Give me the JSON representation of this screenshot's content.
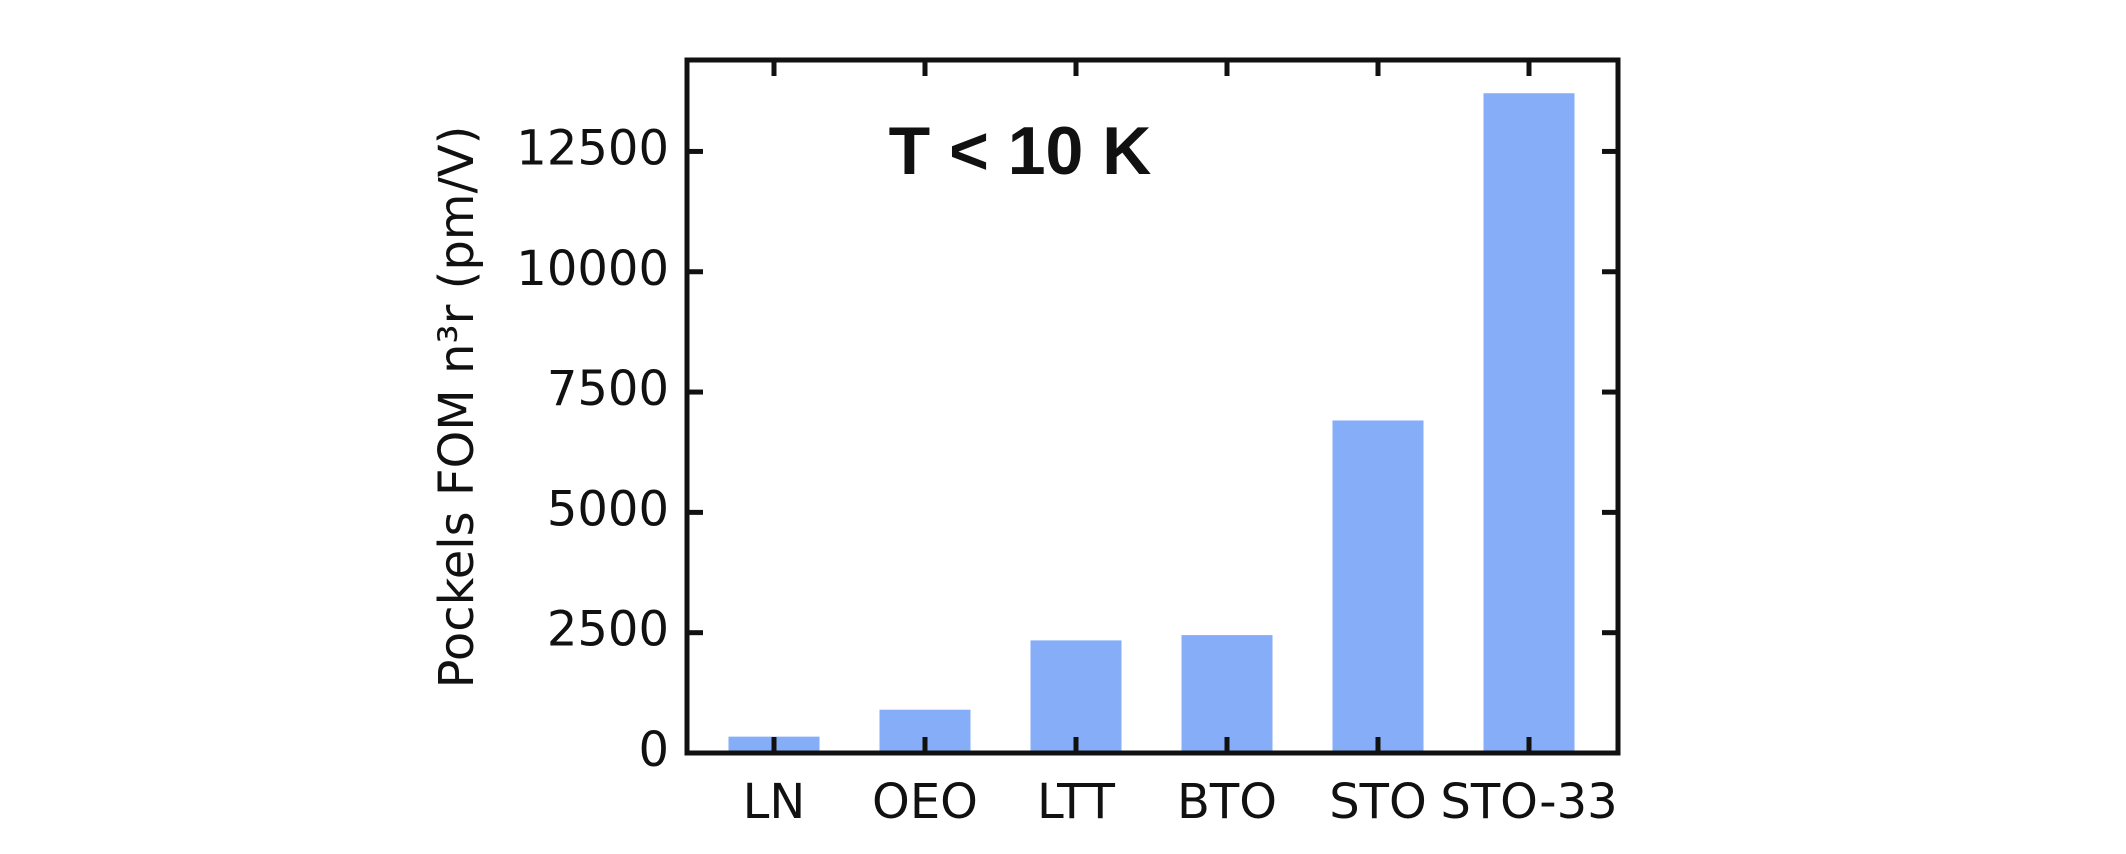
{
  "chart_data": {
    "type": "bar",
    "annotation": "T < 10 K",
    "ylabel": "Pockels FOM n³r (pm/V)",
    "categories": [
      "LN",
      "OEO",
      "LTT",
      "BTO",
      "STO",
      "STO-33"
    ],
    "values": [
      340,
      900,
      2340,
      2450,
      6910,
      13710
    ],
    "color": "#86aef8",
    "ylim": [
      0,
      14400
    ],
    "yticks": [
      0,
      2500,
      5000,
      7500,
      10000,
      12500
    ],
    "grid": false
  }
}
